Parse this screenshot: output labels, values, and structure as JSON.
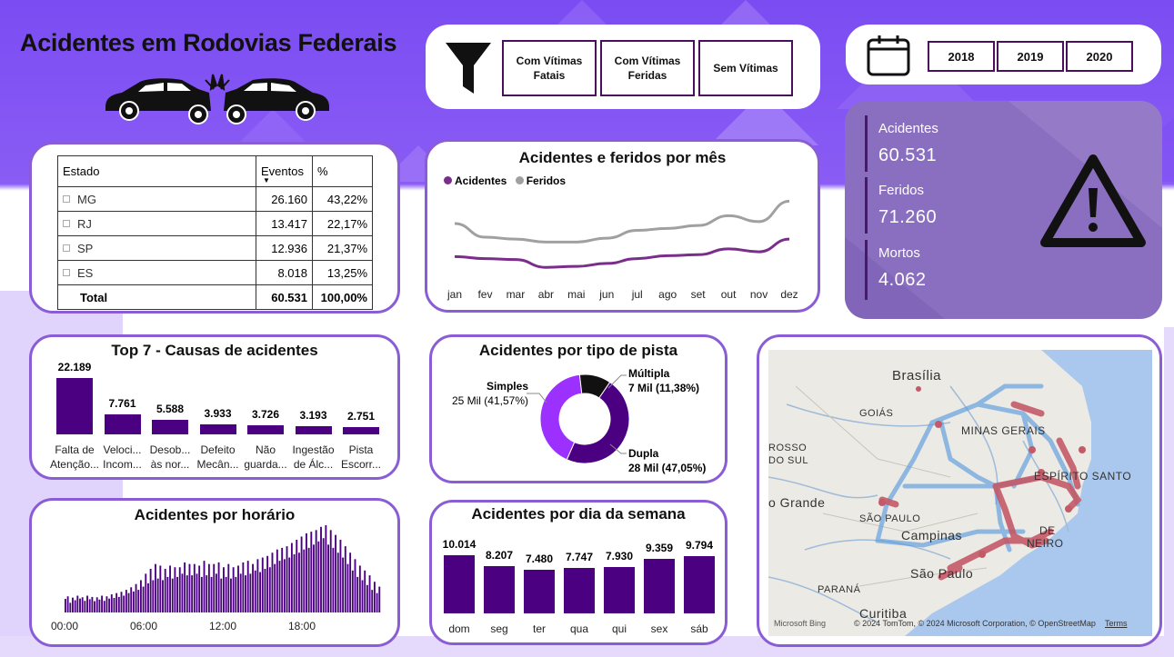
{
  "title": "Acidentes em Rodovias Federais",
  "filters": {
    "icon": "funnel-icon",
    "options": [
      "Com Vítimas Fatais",
      "Com Vítimas Feridas",
      "Sem Vítimas"
    ]
  },
  "years": {
    "icon": "calendar-icon",
    "options": [
      "2018",
      "2019",
      "2020"
    ]
  },
  "kpis": [
    {
      "label": "Acidentes",
      "value": "60.531"
    },
    {
      "label": "Feridos",
      "value": "71.260"
    },
    {
      "label": "Mortos",
      "value": "4.062"
    }
  ],
  "state_table": {
    "headers": [
      "Estado",
      "Eventos",
      "%"
    ],
    "rows": [
      {
        "state": "MG",
        "events": "26.160",
        "pct": "43,22%"
      },
      {
        "state": "RJ",
        "events": "13.417",
        "pct": "22,17%"
      },
      {
        "state": "SP",
        "events": "12.936",
        "pct": "21,37%"
      },
      {
        "state": "ES",
        "events": "8.018",
        "pct": "13,25%"
      }
    ],
    "total": {
      "label": "Total",
      "events": "60.531",
      "pct": "100,00%"
    }
  },
  "colors": {
    "accent": "#8a5cd6",
    "bar": "#4b0082",
    "accidents": "#7b2d8b",
    "injured": "#a0a0a0"
  },
  "chart_data": [
    {
      "type": "line",
      "title": "Acidentes e feridos por mês",
      "categories": [
        "jan",
        "fev",
        "mar",
        "abr",
        "mai",
        "jun",
        "jul",
        "ago",
        "set",
        "out",
        "nov",
        "dez"
      ],
      "series": [
        {
          "name": "Acidentes",
          "values": [
            5100,
            5000,
            4950,
            4550,
            4600,
            4750,
            5000,
            5150,
            5200,
            5500,
            5350,
            6000
          ]
        },
        {
          "name": "Feridos",
          "values": [
            6800,
            6100,
            6000,
            5850,
            5850,
            6050,
            6450,
            6550,
            6700,
            7200,
            6900,
            7950
          ]
        }
      ],
      "legend": "top-left"
    },
    {
      "type": "bar",
      "title": "Top 7 - Causas de acidentes",
      "categories": [
        "Falta de Atenção...",
        "Veloci... Incom...",
        "Desob... às nor...",
        "Defeito Mecân...",
        "Não guarda...",
        "Ingestão de Álc...",
        "Pista Escorr..."
      ],
      "values": [
        22189,
        7761,
        5588,
        3933,
        3726,
        3193,
        2751
      ],
      "labels": [
        "22.189",
        "7.761",
        "5.588",
        "3.933",
        "3.726",
        "3.193",
        "2.751"
      ]
    },
    {
      "type": "pie",
      "title": "Acidentes por tipo de pista",
      "slices": [
        {
          "name": "Dupla",
          "value": 47.05,
          "label": "28 Mil (47,05%)"
        },
        {
          "name": "Simples",
          "value": 41.57,
          "label": "25 Mil (41,57%)"
        },
        {
          "name": "Múltipla",
          "value": 11.38,
          "label": "7 Mil (11,38%)"
        }
      ]
    },
    {
      "type": "bar",
      "title": "Acidentes por horário",
      "x_ticks": [
        "00:00",
        "06:00",
        "12:00",
        "18:00"
      ],
      "values": [
        420,
        500,
        300,
        460,
        380,
        520,
        430,
        470,
        360,
        520,
        410,
        480,
        350,
        470,
        400,
        520,
        360,
        500,
        430,
        560,
        450,
        600,
        480,
        640,
        520,
        700,
        600,
        780,
        650,
        880,
        700,
        1000,
        800,
        1200,
        900,
        1350,
        1000,
        1500,
        1050,
        1450,
        1000,
        1350,
        1100,
        1450,
        1050,
        1400,
        1100,
        1400,
        1200,
        1550,
        1150,
        1500,
        1150,
        1500,
        1200,
        1450,
        1100,
        1600,
        1150,
        1500,
        1100,
        1500,
        1200,
        1550,
        1050,
        1400,
        1100,
        1500,
        1050,
        1400,
        1100,
        1450,
        1200,
        1550,
        1150,
        1600,
        1200,
        1500,
        1300,
        1650,
        1250,
        1700,
        1350,
        1750,
        1400,
        1850,
        1500,
        1950,
        1600,
        2000,
        1650,
        2050,
        1700,
        2150,
        1800,
        2250,
        1850,
        2350,
        1950,
        2450,
        2000,
        2500,
        2100,
        2550,
        2200,
        2650,
        2300,
        2700,
        2100,
        2550,
        2000,
        2400,
        1850,
        2250,
        1700,
        2050,
        1500,
        1850,
        1300,
        1650,
        1100,
        1450,
        1000,
        1300,
        850,
        1150,
        700,
        950,
        600,
        800
      ]
    },
    {
      "type": "bar",
      "title": "Acidentes por dia da semana",
      "categories": [
        "dom",
        "seg",
        "ter",
        "qua",
        "qui",
        "sex",
        "sáb"
      ],
      "values": [
        10014,
        8207,
        7480,
        7747,
        7930,
        9359,
        9794
      ],
      "labels": [
        "10.014",
        "8.207",
        "7.480",
        "7.747",
        "7.930",
        "9.359",
        "9.794"
      ]
    }
  ],
  "map": {
    "labels": [
      "Brasília",
      "GOIÁS",
      "MINAS GERAIS",
      "ESPÍRITO SANTO",
      "ROSSO",
      "DO SUL",
      "o Grande",
      "SÃO PAULO",
      "Campinas",
      "DE",
      "NEIRO",
      "São Paulo",
      "PARANÁ",
      "Curitiba"
    ],
    "attribution": "© 2024 TomTom, © 2024 Microsoft Corporation, © OpenStreetMap",
    "terms": "Terms",
    "brand": "Microsoft Bing"
  }
}
